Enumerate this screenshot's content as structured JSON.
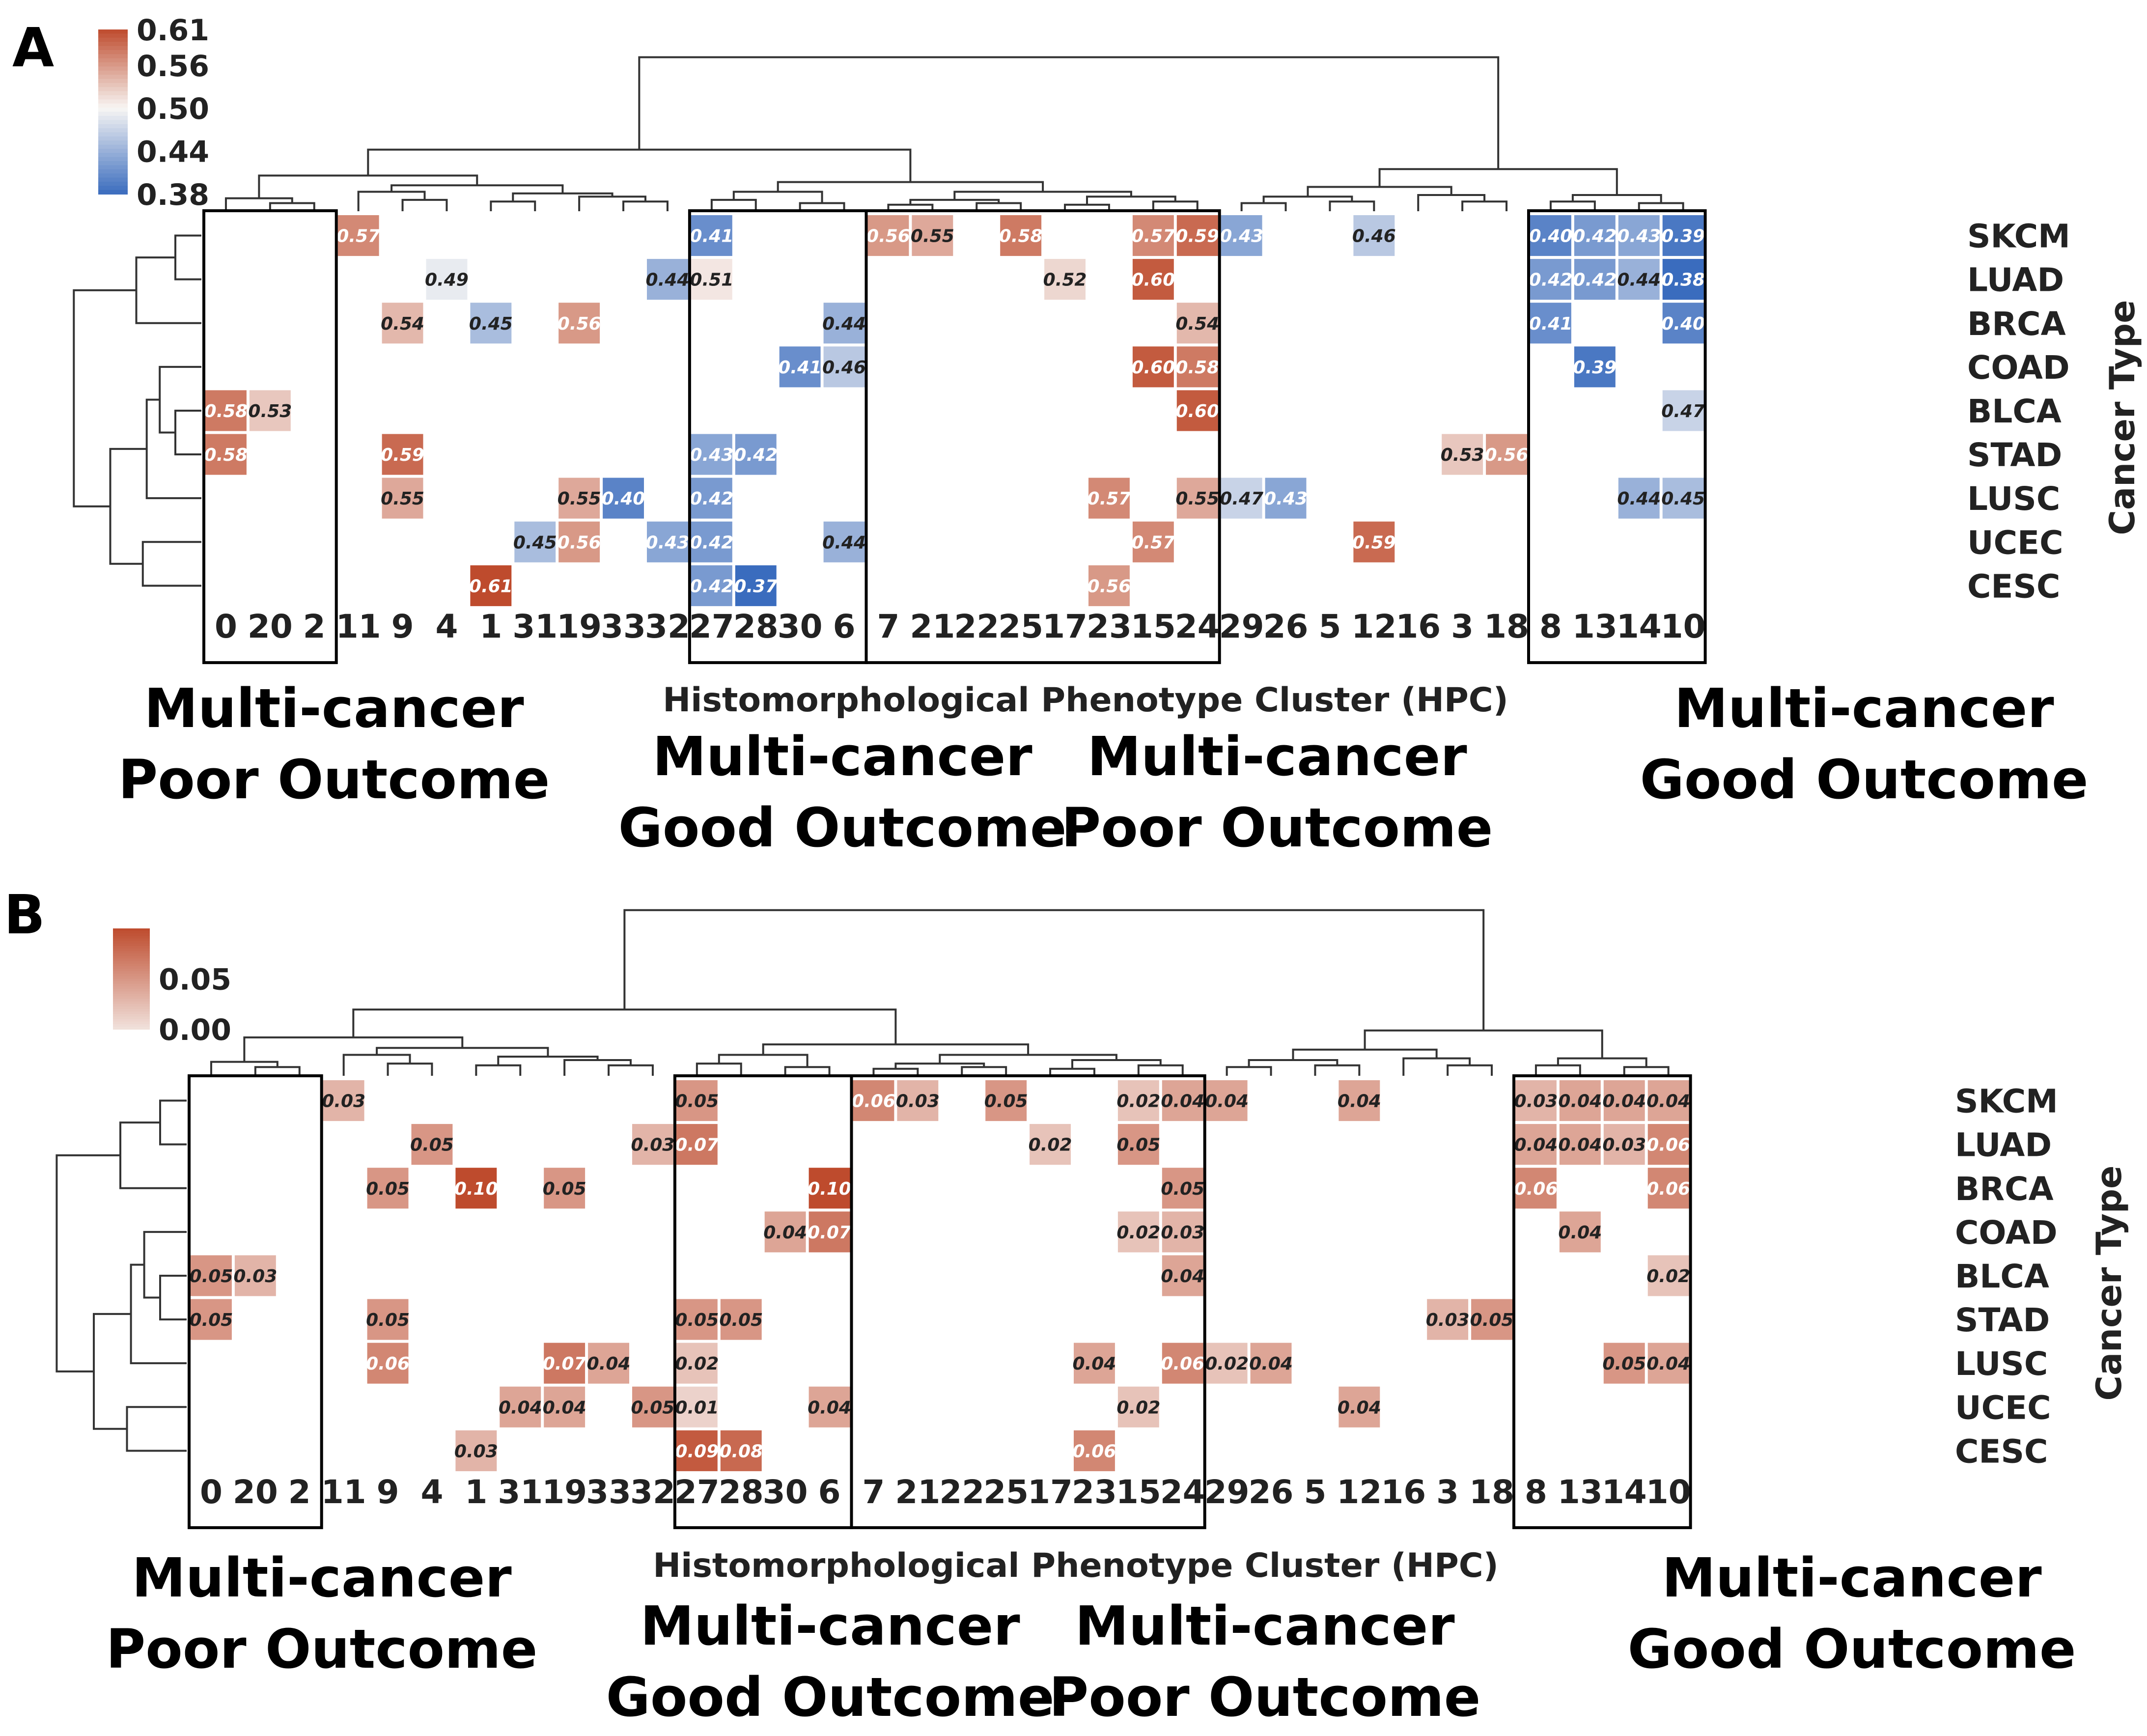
{
  "panel_a": {
    "label": "A",
    "colorbar_ticks": [
      "0.61",
      "0.56",
      "0.50",
      "0.44",
      "0.38"
    ],
    "x_axis_title": "Histomorphological Phenotype Cluster (HPC)",
    "y_axis_title": "Cancer Type",
    "group_labels": [
      {
        "line1": "Multi-cancer",
        "line2": "Poor Outcome"
      },
      {
        "line1": "Multi-cancer",
        "line2": "Good Outcome"
      },
      {
        "line1": "Multi-cancer",
        "line2": "Poor Outcome"
      },
      {
        "line1": "Multi-cancer",
        "line2": "Good Outcome"
      }
    ]
  },
  "panel_b": {
    "label": "B",
    "colorbar_ticks": [
      "0.05",
      "0.00"
    ],
    "x_axis_title": "Histomorphological Phenotype Cluster (HPC)",
    "y_axis_title": "Cancer Type",
    "group_labels": [
      {
        "line1": "Multi-cancer",
        "line2": "Poor Outcome"
      },
      {
        "line1": "Multi-cancer",
        "line2": "Good Outcome"
      },
      {
        "line1": "Multi-cancer",
        "line2": "Poor Outcome"
      },
      {
        "line1": "Multi-cancer",
        "line2": "Good Outcome"
      }
    ]
  },
  "chart_data": [
    {
      "type": "heatmap",
      "title": "",
      "xlabel": "Histomorphological Phenotype Cluster (HPC)",
      "ylabel": "Cancer Type",
      "columns": [
        "0",
        "20",
        "2",
        "11",
        "9",
        "4",
        "1",
        "31",
        "19",
        "33",
        "32",
        "27",
        "28",
        "30",
        "6",
        "7",
        "21",
        "22",
        "25",
        "17",
        "23",
        "15",
        "24",
        "29",
        "26",
        "5",
        "12",
        "16",
        "3",
        "18",
        "8",
        "13",
        "14",
        "10"
      ],
      "rows": [
        "SKCM",
        "LUAD",
        "BRCA",
        "COAD",
        "BLCA",
        "STAD",
        "LUSC",
        "UCEC",
        "CESC"
      ],
      "color_range": [
        0.38,
        0.61
      ],
      "colorbar_ticks": [
        0.61,
        0.56,
        0.5,
        0.44,
        0.38
      ],
      "cells": [
        [
          "SKCM",
          "11",
          0.57
        ],
        [
          "SKCM",
          "27",
          0.41
        ],
        [
          "SKCM",
          "7",
          0.56
        ],
        [
          "SKCM",
          "21",
          0.55
        ],
        [
          "SKCM",
          "25",
          0.58
        ],
        [
          "SKCM",
          "15",
          0.57
        ],
        [
          "SKCM",
          "24",
          0.59
        ],
        [
          "SKCM",
          "29",
          0.43
        ],
        [
          "SKCM",
          "12",
          0.46
        ],
        [
          "SKCM",
          "8",
          0.4
        ],
        [
          "SKCM",
          "13",
          0.42
        ],
        [
          "SKCM",
          "14",
          0.43
        ],
        [
          "SKCM",
          "10",
          0.39
        ],
        [
          "LUAD",
          "4",
          0.49
        ],
        [
          "LUAD",
          "32",
          0.44
        ],
        [
          "LUAD",
          "27",
          0.51
        ],
        [
          "LUAD",
          "17",
          0.52
        ],
        [
          "LUAD",
          "15",
          0.6
        ],
        [
          "LUAD",
          "8",
          0.42
        ],
        [
          "LUAD",
          "13",
          0.42
        ],
        [
          "LUAD",
          "14",
          0.44
        ],
        [
          "LUAD",
          "10",
          0.38
        ],
        [
          "BRCA",
          "9",
          0.54
        ],
        [
          "BRCA",
          "1",
          0.45
        ],
        [
          "BRCA",
          "19",
          0.56
        ],
        [
          "BRCA",
          "6",
          0.44
        ],
        [
          "BRCA",
          "24",
          0.54
        ],
        [
          "BRCA",
          "8",
          0.41
        ],
        [
          "BRCA",
          "10",
          0.4
        ],
        [
          "COAD",
          "30",
          0.41
        ],
        [
          "COAD",
          "6",
          0.46
        ],
        [
          "COAD",
          "15",
          0.6
        ],
        [
          "COAD",
          "24",
          0.58
        ],
        [
          "COAD",
          "13",
          0.39
        ],
        [
          "BLCA",
          "0",
          0.58
        ],
        [
          "BLCA",
          "20",
          0.53
        ],
        [
          "BLCA",
          "24",
          0.6
        ],
        [
          "BLCA",
          "10",
          0.47
        ],
        [
          "STAD",
          "0",
          0.58
        ],
        [
          "STAD",
          "9",
          0.59
        ],
        [
          "STAD",
          "27",
          0.43
        ],
        [
          "STAD",
          "28",
          0.42
        ],
        [
          "STAD",
          "3",
          0.53
        ],
        [
          "STAD",
          "18",
          0.56
        ],
        [
          "LUSC",
          "9",
          0.55
        ],
        [
          "LUSC",
          "19",
          0.55
        ],
        [
          "LUSC",
          "33",
          0.4
        ],
        [
          "LUSC",
          "27",
          0.42
        ],
        [
          "LUSC",
          "23",
          0.57
        ],
        [
          "LUSC",
          "24",
          0.55
        ],
        [
          "LUSC",
          "29",
          0.47
        ],
        [
          "LUSC",
          "26",
          0.43
        ],
        [
          "LUSC",
          "14",
          0.44
        ],
        [
          "LUSC",
          "10",
          0.45
        ],
        [
          "UCEC",
          "31",
          0.45
        ],
        [
          "UCEC",
          "19",
          0.56
        ],
        [
          "UCEC",
          "32",
          0.43
        ],
        [
          "UCEC",
          "27",
          0.42
        ],
        [
          "UCEC",
          "6",
          0.44
        ],
        [
          "UCEC",
          "15",
          0.57
        ],
        [
          "UCEC",
          "12",
          0.59
        ],
        [
          "CESC",
          "1",
          0.61
        ],
        [
          "CESC",
          "27",
          0.42
        ],
        [
          "CESC",
          "28",
          0.37
        ],
        [
          "CESC",
          "23",
          0.56
        ]
      ],
      "groups": [
        {
          "columns": [
            "0",
            "20",
            "2"
          ],
          "label": "Multi-cancer Poor Outcome"
        },
        {
          "columns": [
            "27",
            "28",
            "30",
            "6"
          ],
          "label": "Multi-cancer Good Outcome"
        },
        {
          "columns": [
            "7",
            "21",
            "22",
            "25",
            "17",
            "23",
            "15",
            "24"
          ],
          "label": "Multi-cancer Poor Outcome"
        },
        {
          "columns": [
            "8",
            "13",
            "14",
            "10"
          ],
          "label": "Multi-cancer Good Outcome"
        }
      ]
    },
    {
      "type": "heatmap",
      "title": "",
      "xlabel": "Histomorphological Phenotype Cluster (HPC)",
      "ylabel": "Cancer Type",
      "columns": [
        "0",
        "20",
        "2",
        "11",
        "9",
        "4",
        "1",
        "31",
        "19",
        "33",
        "32",
        "27",
        "28",
        "30",
        "6",
        "7",
        "21",
        "22",
        "25",
        "17",
        "23",
        "15",
        "24",
        "29",
        "26",
        "5",
        "12",
        "16",
        "3",
        "18",
        "8",
        "13",
        "14",
        "10"
      ],
      "rows": [
        "SKCM",
        "LUAD",
        "BRCA",
        "COAD",
        "BLCA",
        "STAD",
        "LUSC",
        "UCEC",
        "CESC"
      ],
      "color_range": [
        0.0,
        0.1
      ],
      "colorbar_ticks": [
        0.05,
        0.0
      ],
      "cells": [
        [
          "SKCM",
          "11",
          0.03
        ],
        [
          "SKCM",
          "27",
          0.05
        ],
        [
          "SKCM",
          "7",
          0.06
        ],
        [
          "SKCM",
          "21",
          0.03
        ],
        [
          "SKCM",
          "25",
          0.05
        ],
        [
          "SKCM",
          "15",
          0.02
        ],
        [
          "SKCM",
          "24",
          0.04
        ],
        [
          "SKCM",
          "29",
          0.04
        ],
        [
          "SKCM",
          "12",
          0.04
        ],
        [
          "SKCM",
          "8",
          0.03
        ],
        [
          "SKCM",
          "13",
          0.04
        ],
        [
          "SKCM",
          "14",
          0.04
        ],
        [
          "SKCM",
          "10",
          0.04
        ],
        [
          "LUAD",
          "4",
          0.05
        ],
        [
          "LUAD",
          "32",
          0.03
        ],
        [
          "LUAD",
          "27",
          0.07
        ],
        [
          "LUAD",
          "17",
          0.02
        ],
        [
          "LUAD",
          "15",
          0.05
        ],
        [
          "LUAD",
          "8",
          0.04
        ],
        [
          "LUAD",
          "13",
          0.04
        ],
        [
          "LUAD",
          "14",
          0.03
        ],
        [
          "LUAD",
          "10",
          0.06
        ],
        [
          "BRCA",
          "9",
          0.05
        ],
        [
          "BRCA",
          "1",
          0.1
        ],
        [
          "BRCA",
          "19",
          0.05
        ],
        [
          "BRCA",
          "6",
          0.1
        ],
        [
          "BRCA",
          "24",
          0.05
        ],
        [
          "BRCA",
          "8",
          0.06
        ],
        [
          "BRCA",
          "10",
          0.06
        ],
        [
          "COAD",
          "30",
          0.04
        ],
        [
          "COAD",
          "6",
          0.07
        ],
        [
          "COAD",
          "15",
          0.02
        ],
        [
          "COAD",
          "24",
          0.03
        ],
        [
          "COAD",
          "13",
          0.04
        ],
        [
          "BLCA",
          "0",
          0.05
        ],
        [
          "BLCA",
          "20",
          0.03
        ],
        [
          "BLCA",
          "24",
          0.04
        ],
        [
          "BLCA",
          "10",
          0.02
        ],
        [
          "STAD",
          "0",
          0.05
        ],
        [
          "STAD",
          "9",
          0.05
        ],
        [
          "STAD",
          "27",
          0.05
        ],
        [
          "STAD",
          "28",
          0.05
        ],
        [
          "STAD",
          "3",
          0.03
        ],
        [
          "STAD",
          "18",
          0.05
        ],
        [
          "LUSC",
          "9",
          0.06
        ],
        [
          "LUSC",
          "19",
          0.07
        ],
        [
          "LUSC",
          "33",
          0.04
        ],
        [
          "LUSC",
          "27",
          0.02
        ],
        [
          "LUSC",
          "23",
          0.04
        ],
        [
          "LUSC",
          "24",
          0.06
        ],
        [
          "LUSC",
          "29",
          0.02
        ],
        [
          "LUSC",
          "26",
          0.04
        ],
        [
          "LUSC",
          "14",
          0.05
        ],
        [
          "LUSC",
          "10",
          0.04
        ],
        [
          "UCEC",
          "31",
          0.04
        ],
        [
          "UCEC",
          "19",
          0.04
        ],
        [
          "UCEC",
          "32",
          0.05
        ],
        [
          "UCEC",
          "27",
          0.01
        ],
        [
          "UCEC",
          "6",
          0.04
        ],
        [
          "UCEC",
          "15",
          0.02
        ],
        [
          "UCEC",
          "12",
          0.04
        ],
        [
          "CESC",
          "1",
          0.03
        ],
        [
          "CESC",
          "27",
          0.09
        ],
        [
          "CESC",
          "28",
          0.08
        ],
        [
          "CESC",
          "23",
          0.06
        ]
      ],
      "groups": [
        {
          "columns": [
            "0",
            "20",
            "2"
          ],
          "label": "Multi-cancer Poor Outcome"
        },
        {
          "columns": [
            "27",
            "28",
            "30",
            "6"
          ],
          "label": "Multi-cancer Good Outcome"
        },
        {
          "columns": [
            "7",
            "21",
            "22",
            "25",
            "17",
            "23",
            "15",
            "24"
          ],
          "label": "Multi-cancer Poor Outcome"
        },
        {
          "columns": [
            "8",
            "13",
            "14",
            "10"
          ],
          "label": "Multi-cancer Good Outcome"
        }
      ]
    }
  ]
}
